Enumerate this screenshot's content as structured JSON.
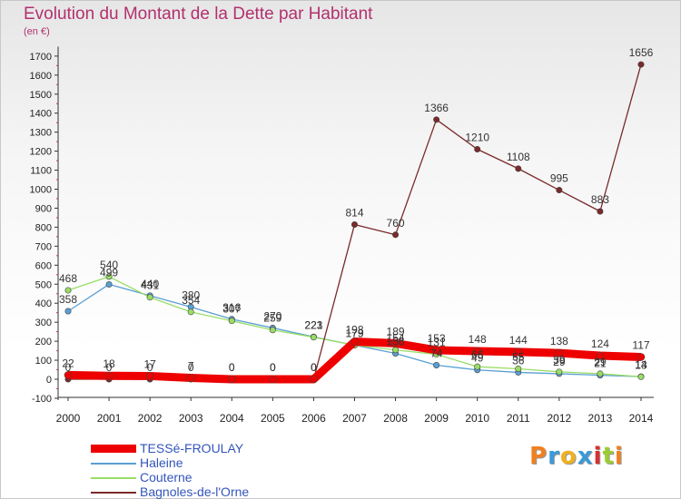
{
  "chart_data": {
    "type": "line",
    "title": "Evolution du Montant de la Dette par Habitant",
    "ylabel": "(en €)",
    "x": [
      "2000",
      "2001",
      "2002",
      "2003",
      "2004",
      "2005",
      "2006",
      "2007",
      "2008",
      "2009",
      "2010",
      "2011",
      "2012",
      "2013",
      "2014"
    ],
    "yticks": [
      -100,
      0,
      100,
      200,
      300,
      400,
      500,
      600,
      700,
      800,
      900,
      1000,
      1100,
      1200,
      1300,
      1400,
      1500,
      1600,
      1700
    ],
    "ylim": [
      -100,
      1750
    ],
    "grid": false,
    "legend_position": "bottom-left",
    "series": [
      {
        "name": "TESSé-FROULAY",
        "color": "#ee0000",
        "thick": true,
        "values": [
          22,
          18,
          17,
          7,
          0,
          0,
          0,
          198,
          189,
          153,
          148,
          144,
          138,
          124,
          117
        ],
        "labels": [
          "22",
          "18",
          "17",
          "7",
          "0",
          "0",
          "0",
          "198",
          "189",
          "153",
          "148",
          "144",
          "138",
          "124",
          "117"
        ]
      },
      {
        "name": "Haleine",
        "color": "#5a9fd4",
        "thick": false,
        "values": [
          358,
          499,
          440,
          380,
          316,
          270,
          223,
          179,
          136,
          74,
          49,
          36,
          29,
          21,
          14
        ],
        "labels": [
          "358",
          "499",
          "440",
          "380",
          "316",
          "270",
          "223",
          "179",
          "136",
          "74",
          "49",
          "36",
          "29",
          "21",
          "14"
        ]
      },
      {
        "name": "Couterne",
        "color": "#99dd66",
        "thick": false,
        "values": [
          468,
          540,
          431,
          354,
          307,
          259,
          221,
          179,
          154,
          131,
          66,
          55,
          39,
          29,
          13
        ],
        "labels": [
          "468",
          "540",
          "431",
          "354",
          "307",
          "259",
          "221",
          "179",
          "154",
          "131",
          "66",
          "55",
          "39",
          "29",
          "13"
        ]
      },
      {
        "name": "Bagnoles-de-l'Orne",
        "color": "#7a2a2a",
        "thick": false,
        "values": [
          0,
          0,
          0,
          0,
          0,
          0,
          0,
          814,
          760,
          1366,
          1210,
          1108,
          995,
          883,
          1656
        ],
        "labels": [
          "0",
          "0",
          "0",
          "0",
          "0",
          "0",
          "0",
          "814",
          "760",
          "1366",
          "1210",
          "1108",
          "995",
          "883",
          "1656"
        ]
      }
    ]
  },
  "logo": {
    "text": "Proxiti",
    "letter_colors": [
      "#f08020",
      "#3a9ad9",
      "#f0b020",
      "#3a9ad9",
      "#d83030",
      "#9acd32",
      "#f08020"
    ]
  }
}
